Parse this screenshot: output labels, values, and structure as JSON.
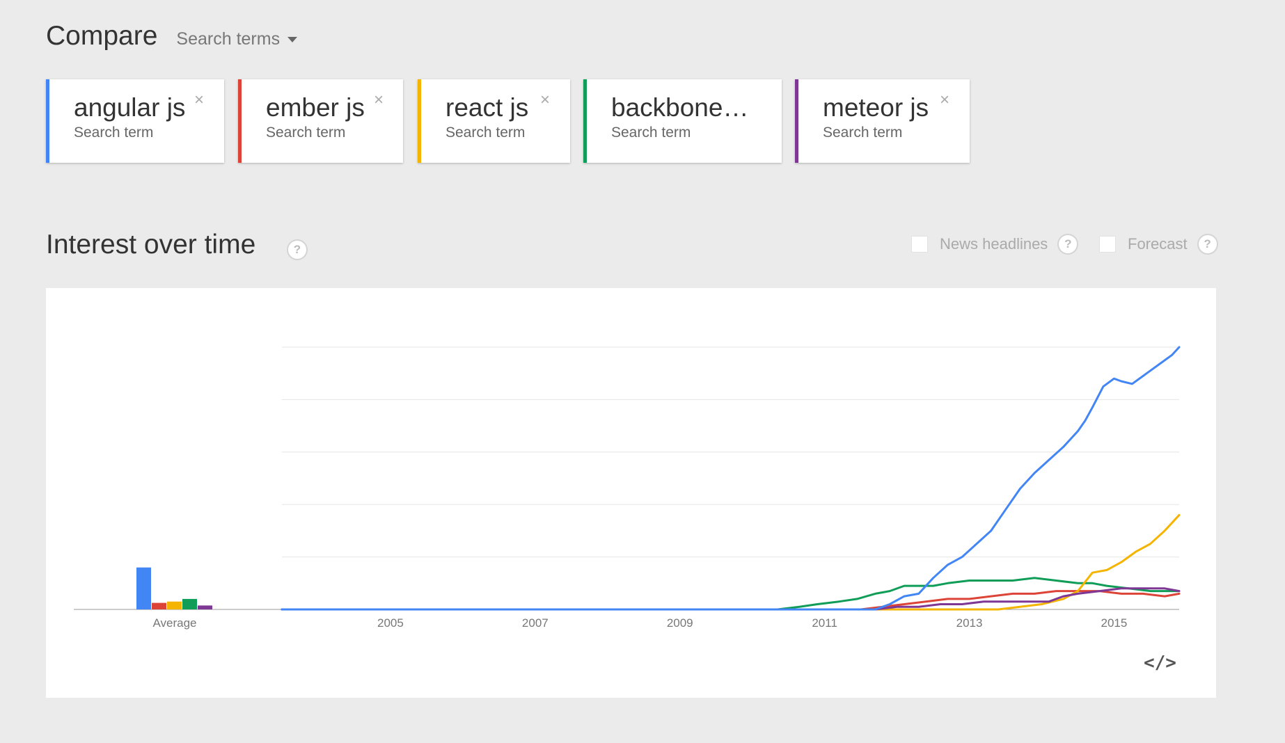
{
  "header": {
    "title": "Compare",
    "search_terms_label": "Search terms"
  },
  "terms": [
    {
      "label": "angular js",
      "sub": "Search term",
      "color": "#4285f4",
      "closable": true
    },
    {
      "label": "ember js",
      "sub": "Search term",
      "color": "#db4437",
      "closable": true
    },
    {
      "label": "react js",
      "sub": "Search term",
      "color": "#f4b400",
      "closable": true
    },
    {
      "label": "backbone…",
      "sub": "Search term",
      "color": "#0f9d58",
      "closable": false
    },
    {
      "label": "meteor js",
      "sub": "Search term",
      "color": "#7e3794",
      "closable": true
    }
  ],
  "close_glyph": "×",
  "section": {
    "title": "Interest over time",
    "help_glyph": "?",
    "news_label": "News headlines",
    "forecast_label": "Forecast",
    "embed_glyph": "</>"
  },
  "chart_data": {
    "type": "line",
    "title": "",
    "xlabel": "",
    "ylabel": "",
    "ylim": [
      0,
      100
    ],
    "grid": true,
    "x_ticks": [
      "2005",
      "2007",
      "2009",
      "2011",
      "2013",
      "2015"
    ],
    "x_range": [
      2004.0,
      2016.4
    ],
    "average_label": "Average",
    "averages": [
      {
        "name": "angular js",
        "value": 16,
        "color": "#4285f4"
      },
      {
        "name": "ember js",
        "value": 2.5,
        "color": "#db4437"
      },
      {
        "name": "react js",
        "value": 3,
        "color": "#f4b400"
      },
      {
        "name": "backbone…",
        "value": 4,
        "color": "#0f9d58"
      },
      {
        "name": "meteor js",
        "value": 1.5,
        "color": "#7e3794"
      }
    ],
    "series": [
      {
        "name": "backbone…",
        "color": "#0f9d58",
        "points": [
          [
            2004.0,
            0
          ],
          [
            2010.85,
            0
          ],
          [
            2011.15,
            1
          ],
          [
            2011.4,
            2
          ],
          [
            2011.7,
            3
          ],
          [
            2011.95,
            4
          ],
          [
            2012.2,
            6
          ],
          [
            2012.4,
            7
          ],
          [
            2012.6,
            9
          ],
          [
            2012.8,
            9
          ],
          [
            2013.0,
            9
          ],
          [
            2013.2,
            10
          ],
          [
            2013.5,
            11
          ],
          [
            2013.8,
            11
          ],
          [
            2014.1,
            11
          ],
          [
            2014.4,
            12
          ],
          [
            2014.7,
            11
          ],
          [
            2015.0,
            10
          ],
          [
            2015.2,
            10
          ],
          [
            2015.4,
            9
          ],
          [
            2015.7,
            8
          ],
          [
            2016.0,
            7
          ],
          [
            2016.4,
            7
          ]
        ]
      },
      {
        "name": "ember js",
        "color": "#db4437",
        "points": [
          [
            2004.0,
            0
          ],
          [
            2012.0,
            0
          ],
          [
            2012.3,
            1
          ],
          [
            2012.6,
            2
          ],
          [
            2012.9,
            3
          ],
          [
            2013.2,
            4
          ],
          [
            2013.5,
            4
          ],
          [
            2013.8,
            5
          ],
          [
            2014.1,
            6
          ],
          [
            2014.4,
            6
          ],
          [
            2014.7,
            7
          ],
          [
            2015.0,
            7
          ],
          [
            2015.3,
            7
          ],
          [
            2015.6,
            6
          ],
          [
            2015.9,
            6
          ],
          [
            2016.2,
            5
          ],
          [
            2016.4,
            6
          ]
        ]
      },
      {
        "name": "react js",
        "color": "#f4b400",
        "points": [
          [
            2004.0,
            0
          ],
          [
            2013.9,
            0
          ],
          [
            2014.2,
            1
          ],
          [
            2014.5,
            2
          ],
          [
            2014.8,
            4
          ],
          [
            2015.0,
            7
          ],
          [
            2015.2,
            14
          ],
          [
            2015.4,
            15
          ],
          [
            2015.6,
            18
          ],
          [
            2015.8,
            22
          ],
          [
            2016.0,
            25
          ],
          [
            2016.2,
            30
          ],
          [
            2016.4,
            36
          ]
        ]
      },
      {
        "name": "meteor js",
        "color": "#7e3794",
        "points": [
          [
            2004.0,
            0
          ],
          [
            2012.2,
            0
          ],
          [
            2012.5,
            1
          ],
          [
            2012.8,
            1
          ],
          [
            2013.1,
            2
          ],
          [
            2013.4,
            2
          ],
          [
            2013.7,
            3
          ],
          [
            2014.0,
            3
          ],
          [
            2014.3,
            3
          ],
          [
            2014.6,
            3
          ],
          [
            2014.8,
            5
          ],
          [
            2015.0,
            6
          ],
          [
            2015.3,
            7
          ],
          [
            2015.6,
            8
          ],
          [
            2015.9,
            8
          ],
          [
            2016.2,
            8
          ],
          [
            2016.4,
            7
          ]
        ]
      },
      {
        "name": "angular js",
        "color": "#4285f4",
        "points": [
          [
            2004.0,
            0
          ],
          [
            2012.2,
            0
          ],
          [
            2012.4,
            2
          ],
          [
            2012.6,
            5
          ],
          [
            2012.8,
            6
          ],
          [
            2013.0,
            12
          ],
          [
            2013.2,
            17
          ],
          [
            2013.4,
            20
          ],
          [
            2013.6,
            25
          ],
          [
            2013.8,
            30
          ],
          [
            2014.0,
            38
          ],
          [
            2014.2,
            46
          ],
          [
            2014.4,
            52
          ],
          [
            2014.6,
            57
          ],
          [
            2014.8,
            62
          ],
          [
            2015.0,
            68
          ],
          [
            2015.1,
            72
          ],
          [
            2015.2,
            77
          ],
          [
            2015.35,
            85
          ],
          [
            2015.5,
            88
          ],
          [
            2015.6,
            87
          ],
          [
            2015.75,
            86
          ],
          [
            2015.9,
            89
          ],
          [
            2016.0,
            91
          ],
          [
            2016.15,
            94
          ],
          [
            2016.3,
            97
          ],
          [
            2016.4,
            100
          ]
        ]
      }
    ]
  }
}
